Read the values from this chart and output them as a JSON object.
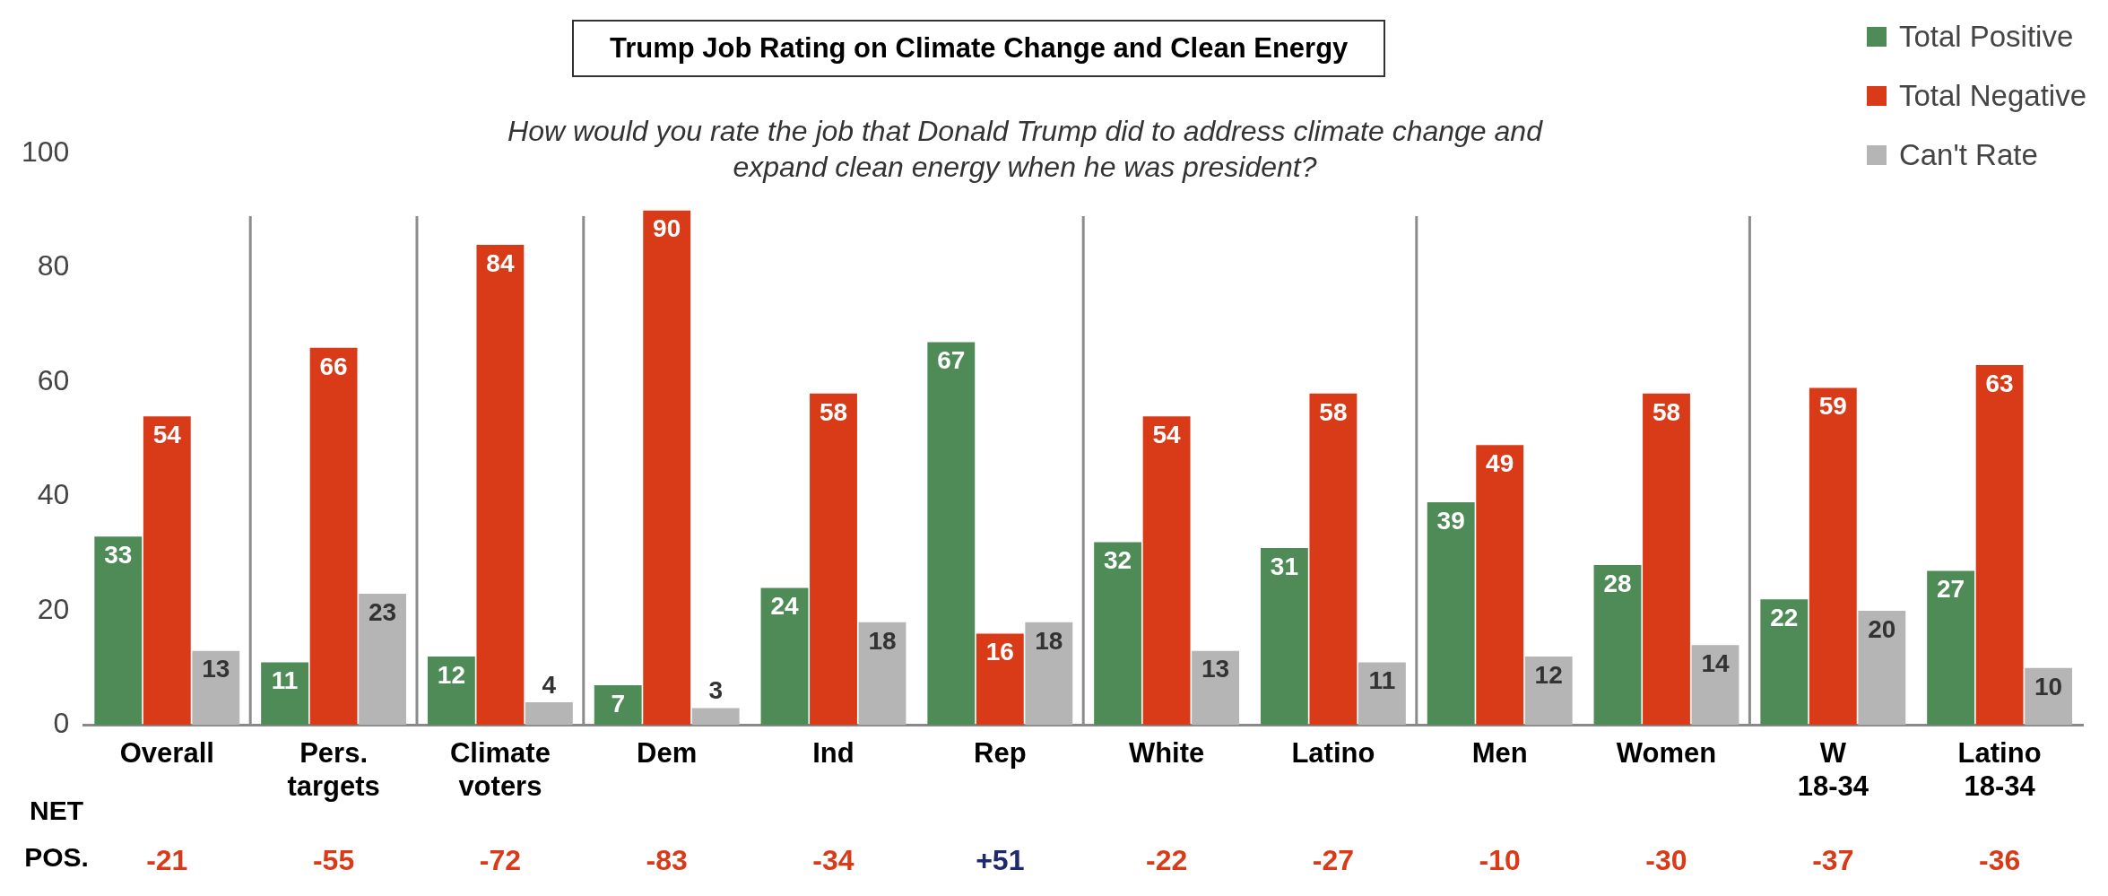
{
  "chart_data": {
    "type": "bar",
    "title": "Trump Job Rating on Climate Change and Clean Energy",
    "subtitle": "How would you rate the job that Donald Trump did to address climate change and expand clean energy when he was president?",
    "categories": [
      "Overall",
      "Pers. targets",
      "Climate voters",
      "Dem",
      "Ind",
      "Rep",
      "White",
      "Latino",
      "Men",
      "Women",
      "W 18-34",
      "Latino 18-34"
    ],
    "series": [
      {
        "name": "Total Positive",
        "color": "#4e8b57",
        "values": [
          33,
          11,
          12,
          7,
          24,
          67,
          32,
          31,
          39,
          28,
          22,
          27
        ]
      },
      {
        "name": "Total Negative",
        "color": "#d93a17",
        "values": [
          54,
          66,
          84,
          90,
          58,
          16,
          54,
          58,
          49,
          58,
          59,
          63
        ]
      },
      {
        "name": "Can't Rate",
        "color": "#b5b5b5",
        "values": [
          13,
          23,
          4,
          3,
          18,
          18,
          13,
          11,
          12,
          14,
          20,
          10
        ]
      }
    ],
    "ylim": [
      0,
      100
    ],
    "yticks": [
      0,
      20,
      40,
      60,
      80,
      100
    ],
    "grid": false,
    "legend": "top right",
    "data_labels": true,
    "annotations": [
      "NET POS.",
      "-21",
      "-55",
      "-72",
      "-83",
      "-34",
      "+51",
      "-22",
      "-27",
      "-10",
      "-30",
      "-37",
      "-36"
    ]
  }
}
